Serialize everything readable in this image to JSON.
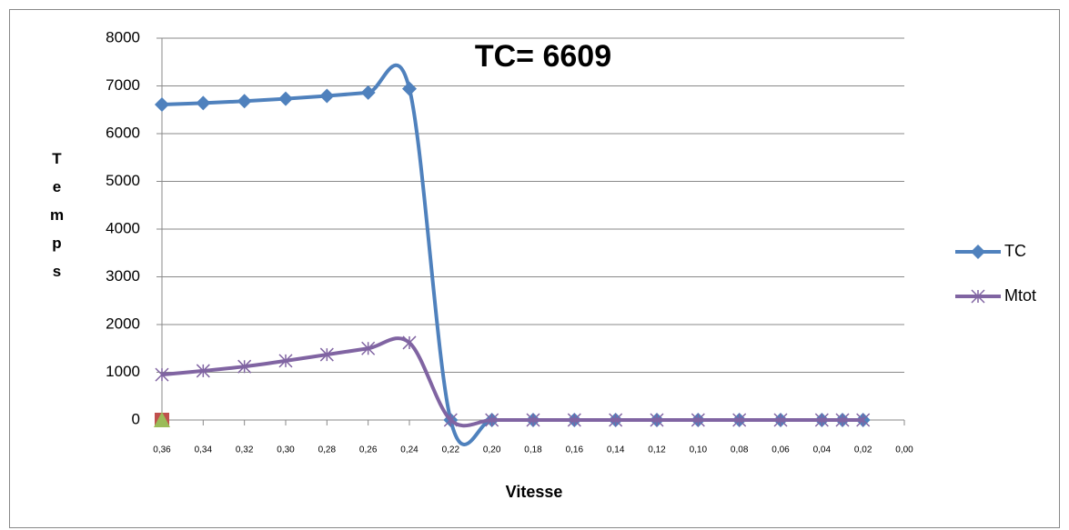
{
  "chart_data": {
    "type": "line",
    "annotation": "TC= 6609",
    "xlabel": "Vitesse",
    "ylabel": "Temps",
    "x": [
      0.36,
      0.34,
      0.32,
      0.3,
      0.28,
      0.26,
      0.24,
      0.22,
      0.2,
      0.18,
      0.16,
      0.14,
      0.12,
      0.1,
      0.08,
      0.06,
      0.04,
      0.03,
      0.02
    ],
    "series": [
      {
        "name": "TC",
        "color": "#4f81bd",
        "marker": "diamond",
        "values": [
          6609,
          6640,
          6680,
          6730,
          6790,
          6860,
          6940,
          0,
          0,
          0,
          0,
          0,
          0,
          0,
          0,
          0,
          0,
          0,
          0
        ]
      },
      {
        "name": "Mtot",
        "color": "#8064a2",
        "marker": "cross",
        "values": [
          950,
          1030,
          1120,
          1240,
          1370,
          1500,
          1620,
          0,
          0,
          0,
          0,
          0,
          0,
          0,
          0,
          0,
          0,
          0,
          0
        ]
      }
    ],
    "points": [
      {
        "x": 0.36,
        "value": 0,
        "color": "#c0504d",
        "marker": "square"
      },
      {
        "x": 0.36,
        "value": 0,
        "color": "#9bbb59",
        "marker": "triangle"
      }
    ],
    "xlim": [
      0.36,
      0.0
    ],
    "xreversed": true,
    "xticks": [
      {
        "value": 0.36,
        "label": "0,36"
      },
      {
        "value": 0.34,
        "label": "0,34"
      },
      {
        "value": 0.32,
        "label": "0,32"
      },
      {
        "value": 0.3,
        "label": "0,30"
      },
      {
        "value": 0.28,
        "label": "0,28"
      },
      {
        "value": 0.26,
        "label": "0,26"
      },
      {
        "value": 0.24,
        "label": "0,24"
      },
      {
        "value": 0.22,
        "label": "0,22"
      },
      {
        "value": 0.2,
        "label": "0,20"
      },
      {
        "value": 0.18,
        "label": "0,18"
      },
      {
        "value": 0.16,
        "label": "0,16"
      },
      {
        "value": 0.14,
        "label": "0,14"
      },
      {
        "value": 0.12,
        "label": "0,12"
      },
      {
        "value": 0.1,
        "label": "0,10"
      },
      {
        "value": 0.08,
        "label": "0,08"
      },
      {
        "value": 0.06,
        "label": "0,06"
      },
      {
        "value": 0.04,
        "label": "0,04"
      },
      {
        "value": 0.02,
        "label": "0,02"
      },
      {
        "value": 0.0,
        "label": "0,00"
      }
    ],
    "ylim": [
      0,
      8000
    ],
    "yticks": [
      0,
      1000,
      2000,
      3000,
      4000,
      5000,
      6000,
      7000,
      8000
    ],
    "grid": true,
    "smooth": true,
    "legend": "right"
  }
}
